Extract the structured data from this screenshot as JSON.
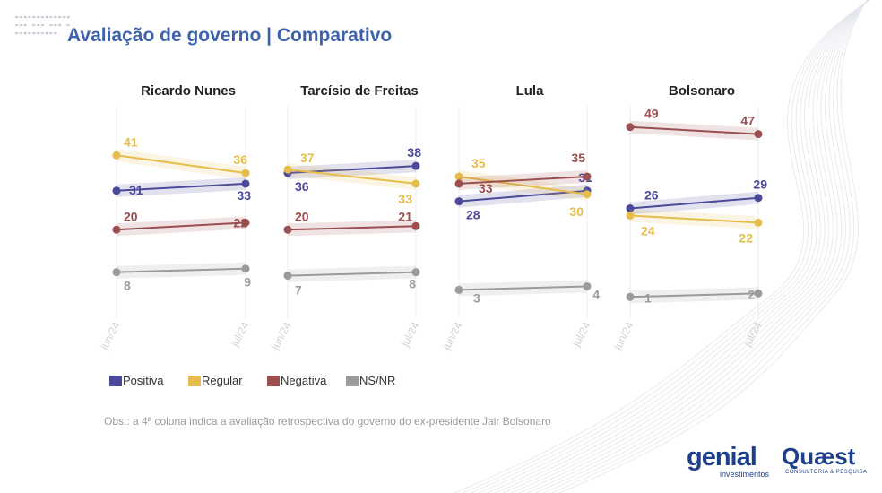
{
  "title": "Avaliação de governo | Comparativo",
  "colors": {
    "Positiva": "#4b4a9a",
    "Regular": "#e6bd4a",
    "Negativa": "#9b4f4f",
    "NS/NR": "#9b9b9b"
  },
  "legend": [
    "Positiva",
    "Regular",
    "Negativa",
    "NS/NR"
  ],
  "note": "Obs.: a 4ª coluna indica a avaliação retrospectiva do governo do ex-presidente Jair Bolsonaro",
  "logos": {
    "genial": "genial",
    "genial_sub": "investimentos",
    "quaest": "Quæst",
    "quaest_sub": "CONSULTORIA & PESQUISA"
  },
  "chart_data": {
    "type": "line",
    "x": [
      "jun/24",
      "jul/24"
    ],
    "panels": [
      {
        "title": "Ricardo Nunes",
        "series": [
          {
            "name": "Positiva",
            "values": [
              31,
              33
            ]
          },
          {
            "name": "Regular",
            "values": [
              41,
              36
            ]
          },
          {
            "name": "Negativa",
            "values": [
              20,
              22
            ]
          },
          {
            "name": "NS/NR",
            "values": [
              8,
              9
            ]
          }
        ]
      },
      {
        "title": "Tarcísio de Freitas",
        "series": [
          {
            "name": "Positiva",
            "values": [
              36,
              38
            ]
          },
          {
            "name": "Regular",
            "values": [
              37,
              33
            ]
          },
          {
            "name": "Negativa",
            "values": [
              20,
              21
            ]
          },
          {
            "name": "NS/NR",
            "values": [
              7,
              8
            ]
          }
        ]
      },
      {
        "title": "Lula",
        "series": [
          {
            "name": "Positiva",
            "values": [
              28,
              31
            ]
          },
          {
            "name": "Regular",
            "values": [
              35,
              30
            ]
          },
          {
            "name": "Negativa",
            "values": [
              33,
              35
            ]
          },
          {
            "name": "NS/NR",
            "values": [
              3,
              4
            ]
          }
        ]
      },
      {
        "title": "Bolsonaro",
        "series": [
          {
            "name": "Positiva",
            "values": [
              26,
              29
            ]
          },
          {
            "name": "Regular",
            "values": [
              24,
              22
            ]
          },
          {
            "name": "Negativa",
            "values": [
              49,
              47
            ]
          },
          {
            "name": "NS/NR",
            "values": [
              1,
              2
            ]
          }
        ]
      }
    ],
    "legend_position": "bottom-left",
    "grid": false
  }
}
